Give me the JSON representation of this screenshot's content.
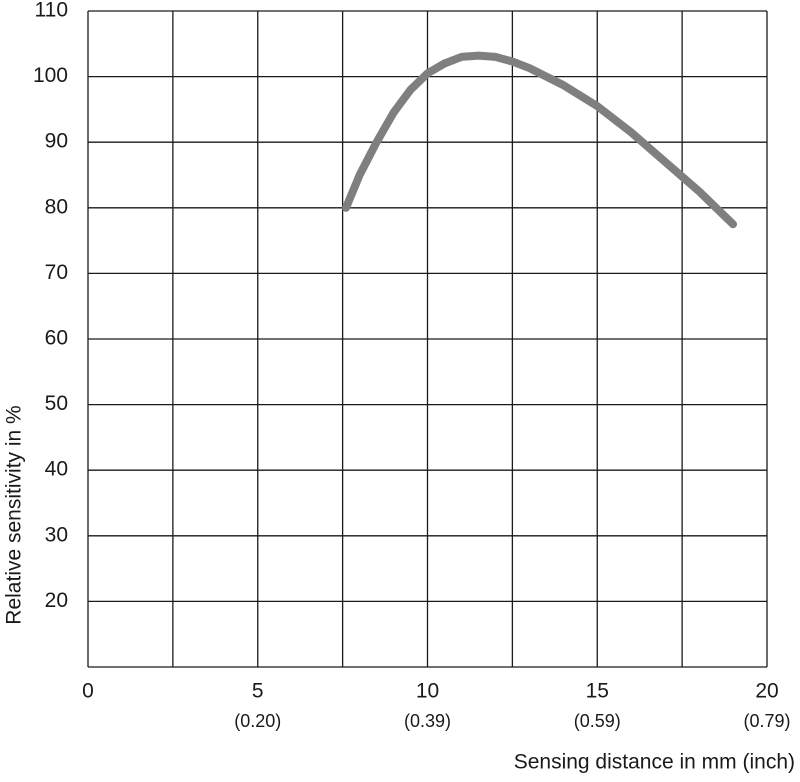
{
  "chart_data": {
    "type": "line",
    "x_label": "Sensing distance in mm (inch)",
    "y_label": "Relative sensitivity in %",
    "series": [
      {
        "color": "#7f7f7f",
        "x": [
          7.6,
          8,
          8.5,
          9,
          9.5,
          10,
          10.5,
          11,
          11.5,
          12,
          12.5,
          13,
          14,
          15,
          16,
          17,
          18,
          19
        ],
        "values": [
          80,
          85,
          90,
          94.5,
          98,
          100.5,
          102,
          103,
          103.2,
          103,
          102.3,
          101.3,
          98.7,
          95.5,
          91.5,
          87,
          82.5,
          77.5
        ]
      }
    ],
    "xlim": [
      0,
      20
    ],
    "xticks": [
      {
        "value": 0,
        "label": "0",
        "inch": null
      },
      {
        "value": 2.5,
        "label": null,
        "inch": null
      },
      {
        "value": 5,
        "label": "5",
        "inch": "(0.20)"
      },
      {
        "value": 7.5,
        "label": null,
        "inch": null
      },
      {
        "value": 10,
        "label": "10",
        "inch": "(0.39)"
      },
      {
        "value": 12.5,
        "label": null,
        "inch": null
      },
      {
        "value": 15,
        "label": "15",
        "inch": "(0.59)"
      },
      {
        "value": 17.5,
        "label": null,
        "inch": null
      },
      {
        "value": 20,
        "label": "20",
        "inch": "(0.79)"
      }
    ],
    "ylim": [
      10,
      110
    ],
    "yticks": [
      {
        "value": 10,
        "label": null
      },
      20,
      30,
      40,
      50,
      60,
      70,
      80,
      90,
      100,
      110
    ],
    "grid": true
  }
}
